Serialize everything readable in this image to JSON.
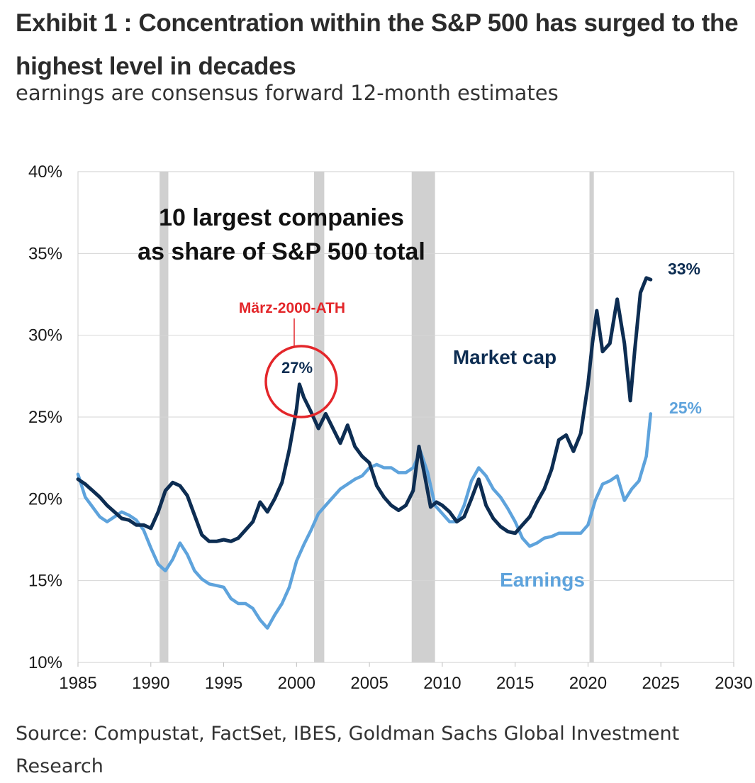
{
  "title": "Exhibit 1 : Concentration within the S&P 500 has surged to the highest level in decades",
  "subtitle": "earnings are consensus forward 12-month estimates",
  "source": "Source: Compustat, FactSet, IBES, Goldman Sachs Global Investment Research",
  "colors": {
    "market_cap": "#0d2d52",
    "earnings": "#5ea3dc",
    "annotation": "#e3262a",
    "recession": "#d0d0d0"
  },
  "chart_data": {
    "type": "line",
    "title": "10 largest companies as share of S&P 500 total",
    "title_lines": [
      "10 largest companies",
      "as share of S&P 500 total"
    ],
    "xlabel": "",
    "ylabel": "",
    "xlim": [
      1985,
      2030
    ],
    "ylim": [
      10,
      40
    ],
    "x_ticks": [
      1985,
      1990,
      1995,
      2000,
      2005,
      2010,
      2015,
      2020,
      2025,
      2030
    ],
    "y_ticks": [
      10,
      15,
      20,
      25,
      30,
      35,
      40
    ],
    "y_tick_labels": [
      "10%",
      "15%",
      "20%",
      "25%",
      "30%",
      "35%",
      "40%"
    ],
    "grid": {
      "horizontal": true,
      "vertical": false
    },
    "recessions": [
      [
        1990.6,
        1991.2
      ],
      [
        2001.2,
        2001.9
      ],
      [
        2007.9,
        2009.5
      ],
      [
        2020.1,
        2020.4
      ]
    ],
    "series": [
      {
        "name": "Market cap",
        "label": "Market cap",
        "end_label": "33%",
        "points": [
          [
            1985.0,
            21.2
          ],
          [
            1985.5,
            20.9
          ],
          [
            1986.0,
            20.5
          ],
          [
            1986.5,
            20.1
          ],
          [
            1987.0,
            19.6
          ],
          [
            1987.5,
            19.2
          ],
          [
            1988.0,
            18.8
          ],
          [
            1988.5,
            18.7
          ],
          [
            1989.0,
            18.4
          ],
          [
            1989.5,
            18.4
          ],
          [
            1990.0,
            18.2
          ],
          [
            1990.5,
            19.2
          ],
          [
            1991.0,
            20.5
          ],
          [
            1991.5,
            21.0
          ],
          [
            1992.0,
            20.8
          ],
          [
            1992.5,
            20.2
          ],
          [
            1993.0,
            19.0
          ],
          [
            1993.5,
            17.8
          ],
          [
            1994.0,
            17.4
          ],
          [
            1994.5,
            17.4
          ],
          [
            1995.0,
            17.5
          ],
          [
            1995.5,
            17.4
          ],
          [
            1996.0,
            17.6
          ],
          [
            1996.5,
            18.1
          ],
          [
            1997.0,
            18.6
          ],
          [
            1997.5,
            19.8
          ],
          [
            1998.0,
            19.2
          ],
          [
            1998.5,
            20.0
          ],
          [
            1999.0,
            21.0
          ],
          [
            1999.5,
            23.0
          ],
          [
            2000.0,
            25.5
          ],
          [
            2000.2,
            27.0
          ],
          [
            2000.5,
            26.2
          ],
          [
            2001.0,
            25.3
          ],
          [
            2001.5,
            24.3
          ],
          [
            2002.0,
            25.2
          ],
          [
            2002.5,
            24.3
          ],
          [
            2003.0,
            23.4
          ],
          [
            2003.5,
            24.5
          ],
          [
            2004.0,
            23.2
          ],
          [
            2004.5,
            22.6
          ],
          [
            2005.0,
            22.2
          ],
          [
            2005.5,
            20.8
          ],
          [
            2006.0,
            20.1
          ],
          [
            2006.5,
            19.6
          ],
          [
            2007.0,
            19.3
          ],
          [
            2007.5,
            19.6
          ],
          [
            2008.0,
            20.5
          ],
          [
            2008.4,
            23.2
          ],
          [
            2008.8,
            21.4
          ],
          [
            2009.2,
            19.5
          ],
          [
            2009.6,
            19.8
          ],
          [
            2010.0,
            19.6
          ],
          [
            2010.5,
            19.2
          ],
          [
            2011.0,
            18.6
          ],
          [
            2011.5,
            18.9
          ],
          [
            2012.0,
            20.0
          ],
          [
            2012.5,
            21.2
          ],
          [
            2013.0,
            19.6
          ],
          [
            2013.5,
            18.8
          ],
          [
            2014.0,
            18.3
          ],
          [
            2014.5,
            18.0
          ],
          [
            2015.0,
            17.9
          ],
          [
            2015.5,
            18.4
          ],
          [
            2016.0,
            18.9
          ],
          [
            2016.5,
            19.8
          ],
          [
            2017.0,
            20.6
          ],
          [
            2017.5,
            21.8
          ],
          [
            2018.0,
            23.6
          ],
          [
            2018.5,
            23.9
          ],
          [
            2019.0,
            22.9
          ],
          [
            2019.5,
            24.0
          ],
          [
            2020.0,
            27.0
          ],
          [
            2020.3,
            29.5
          ],
          [
            2020.6,
            31.5
          ],
          [
            2021.0,
            29.0
          ],
          [
            2021.5,
            29.5
          ],
          [
            2022.0,
            32.2
          ],
          [
            2022.5,
            29.5
          ],
          [
            2022.9,
            26.0
          ],
          [
            2023.2,
            29.0
          ],
          [
            2023.6,
            32.6
          ],
          [
            2024.0,
            33.5
          ],
          [
            2024.3,
            33.4
          ]
        ]
      },
      {
        "name": "Earnings",
        "label": "Earnings",
        "end_label": "25%",
        "points": [
          [
            1985.0,
            21.5
          ],
          [
            1985.5,
            20.1
          ],
          [
            1986.0,
            19.5
          ],
          [
            1986.5,
            18.9
          ],
          [
            1987.0,
            18.6
          ],
          [
            1987.5,
            18.9
          ],
          [
            1988.0,
            19.2
          ],
          [
            1988.5,
            19.0
          ],
          [
            1989.0,
            18.7
          ],
          [
            1989.5,
            18.1
          ],
          [
            1990.0,
            17.0
          ],
          [
            1990.5,
            16.0
          ],
          [
            1991.0,
            15.6
          ],
          [
            1991.5,
            16.3
          ],
          [
            1992.0,
            17.3
          ],
          [
            1992.5,
            16.6
          ],
          [
            1993.0,
            15.6
          ],
          [
            1993.5,
            15.1
          ],
          [
            1994.0,
            14.8
          ],
          [
            1994.5,
            14.7
          ],
          [
            1995.0,
            14.6
          ],
          [
            1995.5,
            13.9
          ],
          [
            1996.0,
            13.6
          ],
          [
            1996.5,
            13.6
          ],
          [
            1997.0,
            13.3
          ],
          [
            1997.5,
            12.6
          ],
          [
            1998.0,
            12.1
          ],
          [
            1998.5,
            12.9
          ],
          [
            1999.0,
            13.6
          ],
          [
            1999.5,
            14.6
          ],
          [
            2000.0,
            16.2
          ],
          [
            2000.5,
            17.2
          ],
          [
            2001.0,
            18.1
          ],
          [
            2001.5,
            19.1
          ],
          [
            2002.0,
            19.6
          ],
          [
            2002.5,
            20.1
          ],
          [
            2003.0,
            20.6
          ],
          [
            2003.5,
            20.9
          ],
          [
            2004.0,
            21.2
          ],
          [
            2004.5,
            21.4
          ],
          [
            2005.0,
            21.9
          ],
          [
            2005.5,
            22.1
          ],
          [
            2006.0,
            21.9
          ],
          [
            2006.5,
            21.9
          ],
          [
            2007.0,
            21.6
          ],
          [
            2007.5,
            21.6
          ],
          [
            2008.0,
            21.9
          ],
          [
            2008.5,
            22.9
          ],
          [
            2009.0,
            21.6
          ],
          [
            2009.5,
            19.6
          ],
          [
            2010.0,
            19.1
          ],
          [
            2010.5,
            18.6
          ],
          [
            2011.0,
            18.6
          ],
          [
            2011.5,
            19.6
          ],
          [
            2012.0,
            21.1
          ],
          [
            2012.5,
            21.9
          ],
          [
            2013.0,
            21.4
          ],
          [
            2013.5,
            20.6
          ],
          [
            2014.0,
            20.1
          ],
          [
            2014.5,
            19.4
          ],
          [
            2015.0,
            18.6
          ],
          [
            2015.5,
            17.6
          ],
          [
            2016.0,
            17.1
          ],
          [
            2016.5,
            17.3
          ],
          [
            2017.0,
            17.6
          ],
          [
            2017.5,
            17.7
          ],
          [
            2018.0,
            17.9
          ],
          [
            2018.5,
            17.9
          ],
          [
            2019.0,
            17.9
          ],
          [
            2019.5,
            17.9
          ],
          [
            2020.0,
            18.4
          ],
          [
            2020.5,
            19.9
          ],
          [
            2021.0,
            20.9
          ],
          [
            2021.5,
            21.1
          ],
          [
            2022.0,
            21.4
          ],
          [
            2022.5,
            19.9
          ],
          [
            2023.0,
            20.6
          ],
          [
            2023.5,
            21.1
          ],
          [
            2024.0,
            22.6
          ],
          [
            2024.3,
            25.2
          ]
        ]
      }
    ],
    "annotations": [
      {
        "label": "27%",
        "x": 2000.3,
        "y": 26.3,
        "style": "red-circle"
      },
      {
        "label": "März-2000-ATH",
        "style": "red-text"
      }
    ]
  }
}
